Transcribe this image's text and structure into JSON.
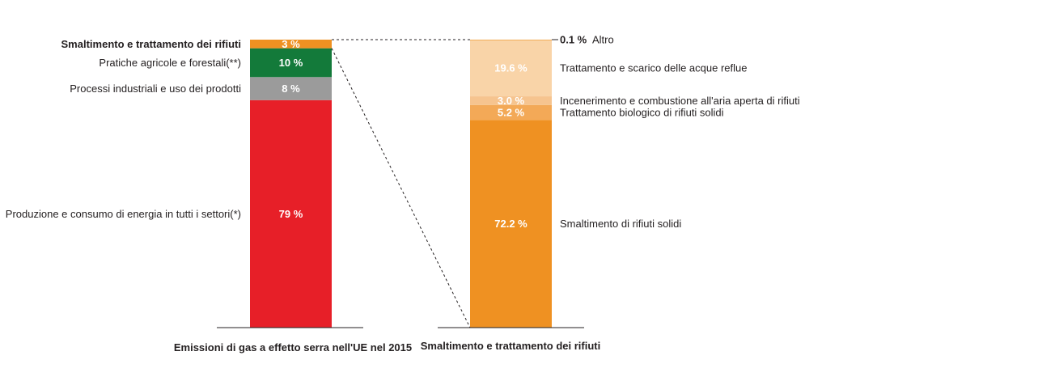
{
  "chart_data": [
    {
      "type": "bar",
      "stacked": true,
      "xlabel": "Emissioni di gas a effetto serra nell'UE nel 2015",
      "unit": "%",
      "ylim": [
        0,
        100
      ],
      "series": [
        {
          "name": "Produzione e consumo di energia in tutti i settori(*)",
          "value": 79,
          "label": "79 %",
          "color": "#e71f28",
          "emphasis": false
        },
        {
          "name": "Processi industriali e uso dei prodotti",
          "value": 8,
          "label": "8 %",
          "color": "#9b9b9b",
          "emphasis": false
        },
        {
          "name": "Pratiche agricole e forestali(**)",
          "value": 10,
          "label": "10 %",
          "color": "#137a3a",
          "emphasis": false
        },
        {
          "name": "Smaltimento e trattamento dei rifiuti",
          "value": 3,
          "label": "3 %",
          "color": "#ef9122",
          "emphasis": true
        }
      ]
    },
    {
      "type": "bar",
      "stacked": true,
      "xlabel": "Smaltimento e trattamento dei rifiuti",
      "unit": "%",
      "ylim": [
        0,
        100
      ],
      "series": [
        {
          "name": "Smaltimento di rifiuti solidi",
          "value": 72.2,
          "label": "72.2 %",
          "color": "#ef9122"
        },
        {
          "name": "Trattamento biologico di rifiuti solidi",
          "value": 5.2,
          "label": "5.2 %",
          "color": "#f3a957"
        },
        {
          "name": "Incenerimento e combustione all'aria aperta di rifiuti",
          "value": 3.0,
          "label": "3.0 %",
          "color": "#f6c48f"
        },
        {
          "name": "Trattamento e scarico delle acque reflue",
          "value": 19.6,
          "label": "19.6 %",
          "color": "#f9d4a8"
        },
        {
          "name": "Altro",
          "value": 0.1,
          "label": "0.1 %",
          "color": "#ef9122"
        }
      ]
    }
  ]
}
